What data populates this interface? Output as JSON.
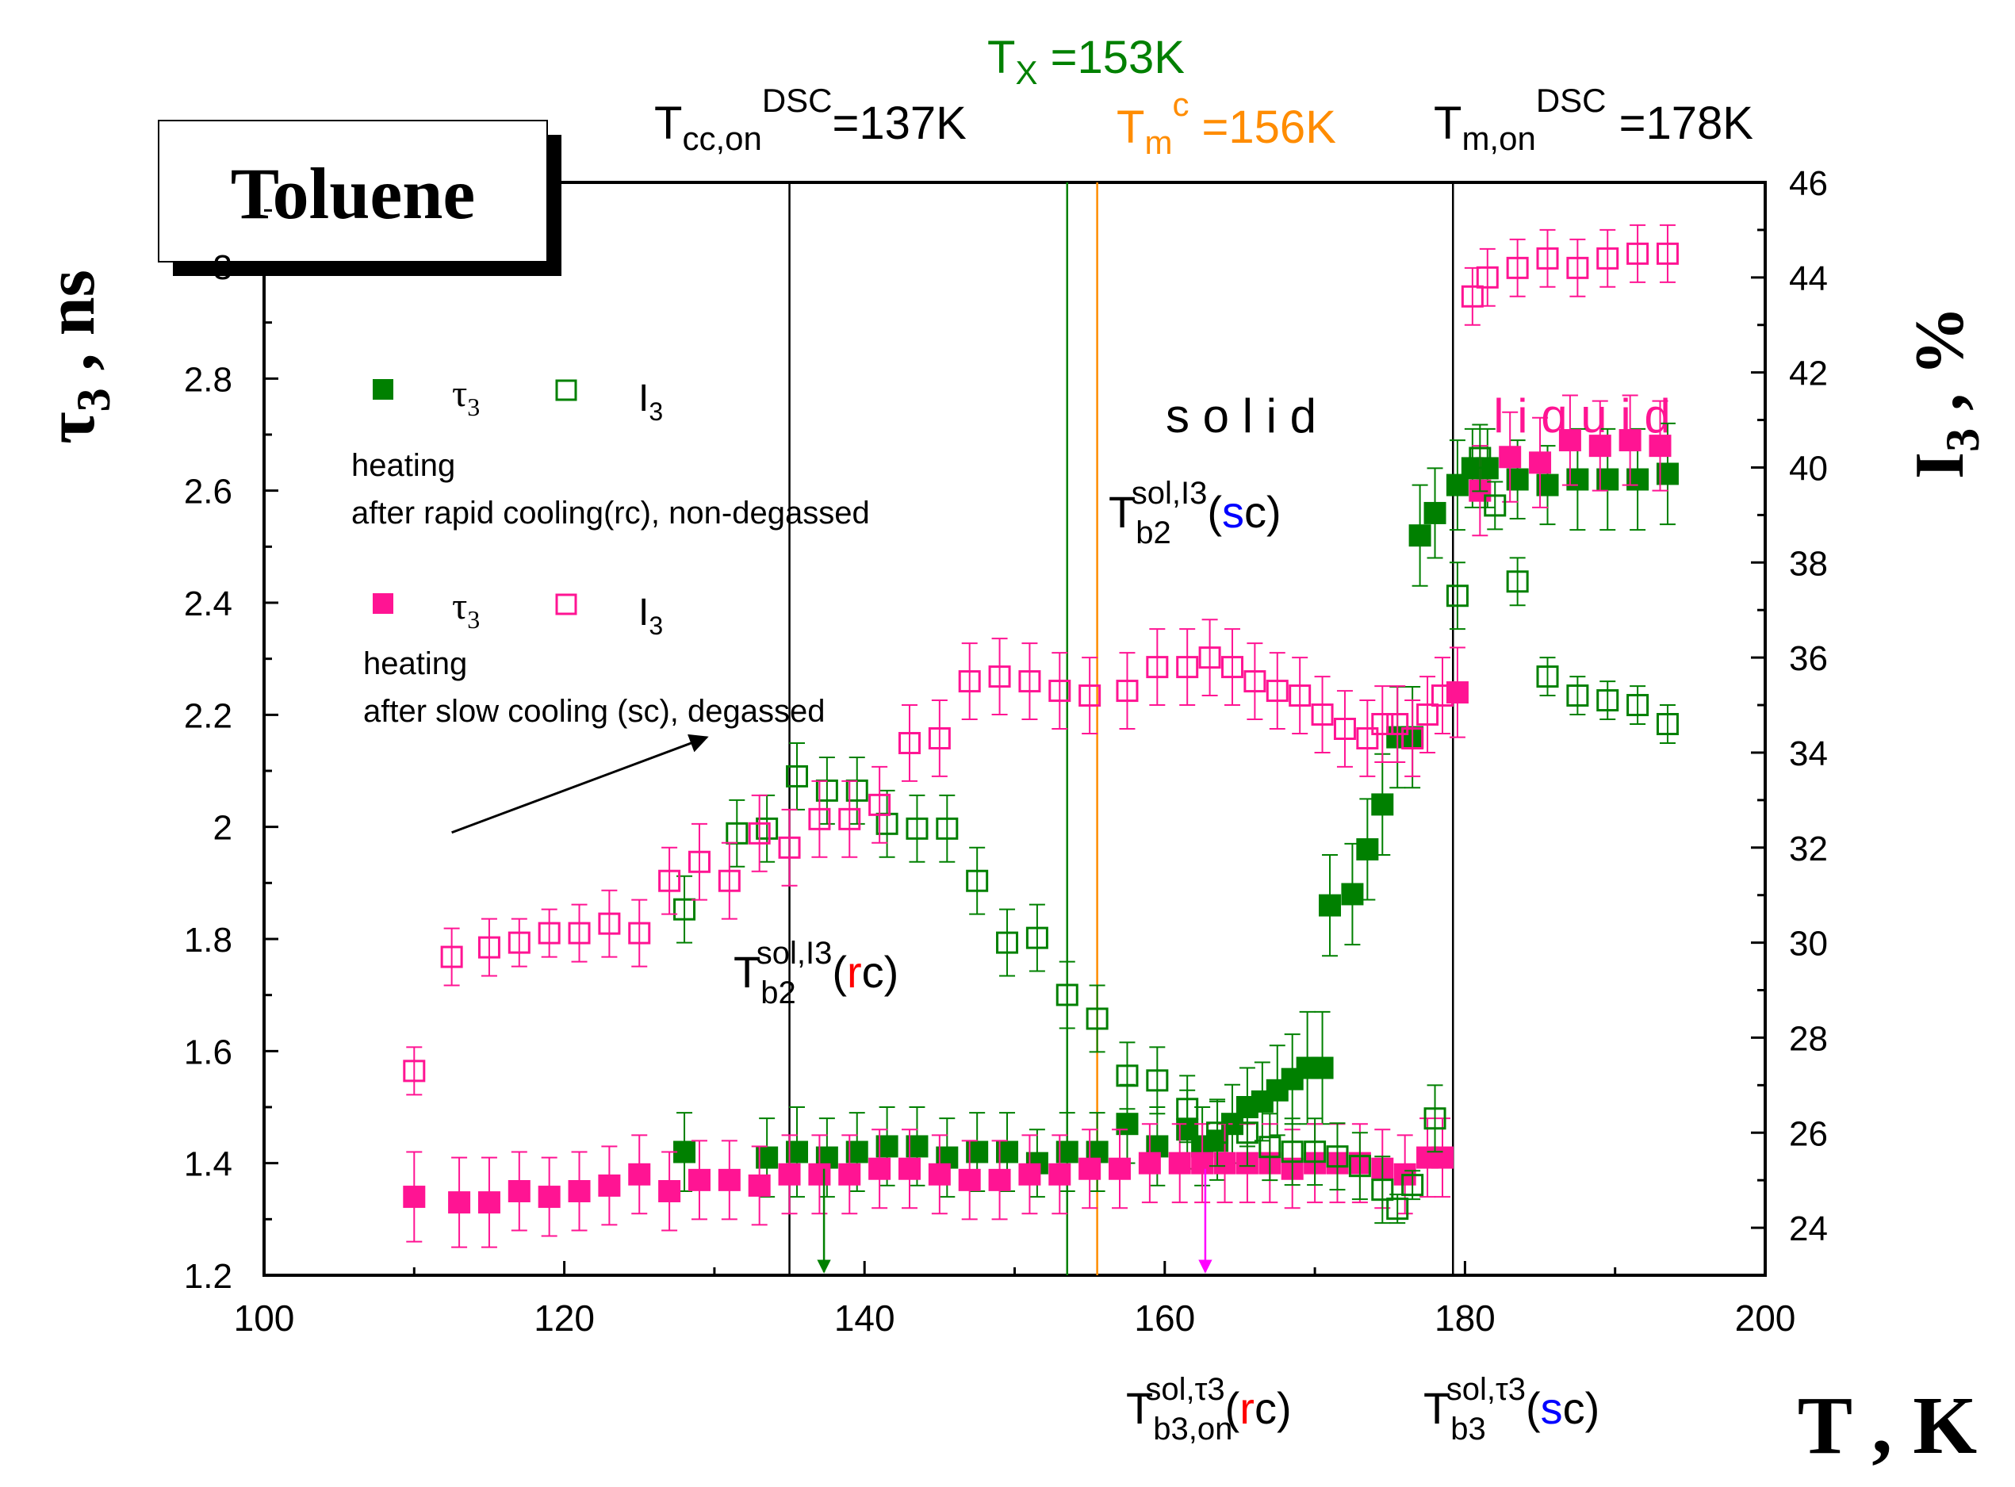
{
  "chart_data": {
    "type": "scatter",
    "title": "Toluene",
    "xlabel": "T , K",
    "ylabel_left": {
      "main": "τ",
      "sub": "3",
      "rest": " , ns"
    },
    "ylabel_right": {
      "main": "I",
      "sub": "3",
      "rest": " , %"
    },
    "xlim": [
      100,
      200
    ],
    "ylim_left": [
      1.2,
      3.15
    ],
    "ylim_right": [
      23,
      46
    ],
    "xticks": [
      100,
      120,
      140,
      160,
      180,
      200
    ],
    "yticks_left": [
      1.2,
      1.4,
      1.6,
      1.8,
      2,
      2.2,
      2.4,
      2.6,
      2.8,
      3
    ],
    "yticks_right": [
      24,
      26,
      28,
      30,
      32,
      34,
      36,
      38,
      40,
      42,
      44,
      46
    ],
    "colors": {
      "green": "#008000",
      "magenta": "#ff1493",
      "orange": "#ff8c00",
      "red": "#ff0000",
      "blue": "#0000ff",
      "arrow_magenta": "#ff00ff",
      "black": "#000000"
    },
    "legend": [
      {
        "tau_label": "τ",
        "tau_sub": "3",
        "I_label": "I",
        "I_sub": "3",
        "color": "#008000",
        "line1": "heating",
        "line2": "after rapid cooling(rc), non-degassed"
      },
      {
        "tau_label": "τ",
        "tau_sub": "3",
        "I_label": "I",
        "I_sub": "3",
        "color": "#ff1493",
        "line1": "heating",
        "line2": "after slow cooling (sc), degassed"
      }
    ],
    "vlines": [
      {
        "x": 135,
        "color": "#000000"
      },
      {
        "x": 153.5,
        "color": "#008000"
      },
      {
        "x": 155.5,
        "color": "#ff8c00"
      },
      {
        "x": 179.2,
        "color": "#000000"
      }
    ],
    "top_annotations": [
      {
        "main": "T",
        "sub": "cc,on",
        "sup": "DSC",
        "rest": "=137K",
        "color": "#000000"
      },
      {
        "main": "T",
        "sub": "X",
        "sup": "",
        "rest": " =153K",
        "color": "#008000"
      },
      {
        "main": "T",
        "sub": "m",
        "sup": "c",
        "rest": " =156K",
        "color": "#ff8c00"
      },
      {
        "main": "T",
        "sub": "m,on",
        "sup": "DSC",
        "rest": " =178K",
        "color": "#000000"
      }
    ],
    "region_labels": {
      "solid": "s o l i d",
      "liquid": "l i q u i d"
    },
    "inner_annotations": [
      {
        "id": "b2-sc",
        "main": "T",
        "sub": "b2",
        "sup": "sol,I3",
        "open": "(",
        "colored": "s",
        "rest": "c)",
        "colored_color": "#0000ff"
      },
      {
        "id": "b2-rc",
        "main": "T",
        "sub": "b2",
        "sup": "sol,I3",
        "open": "(",
        "colored": "r",
        "rest": "c)",
        "colored_color": "#ff0000"
      },
      {
        "id": "b3on-rc",
        "main": "T",
        "sub": "b3,on",
        "sup": "sol,τ3",
        "open": "(",
        "colored": "r",
        "rest": "c)",
        "colored_color": "#ff0000"
      },
      {
        "id": "b3-sc",
        "main": "T",
        "sub": "b3",
        "sup": "sol,τ3",
        "open": "(",
        "colored": "s",
        "rest": "c)",
        "colored_color": "#0000ff"
      }
    ],
    "arrows": [
      {
        "from": [
          112.5,
          1.99
        ],
        "to": [
          129.5,
          2.16
        ],
        "color": "#000000"
      },
      {
        "x": 137.3,
        "from_y": 1.39,
        "to_y": 1.2,
        "color": "#008000"
      },
      {
        "x": 162.7,
        "from_y": 1.39,
        "to_y": 1.2,
        "color": "#ff00ff"
      }
    ],
    "series": [
      {
        "name": "τ3 rc (heating after rapid cooling, non-degassed)",
        "axis": "left",
        "marker": "filled-square",
        "color": "#008000",
        "x": [
          128,
          133.5,
          135.5,
          137.5,
          139.5,
          141.5,
          143.5,
          145.5,
          147.5,
          149.5,
          151.5,
          153.5,
          155.5,
          157.5,
          159.5,
          161.5,
          162.5,
          163.5,
          164.5,
          165.5,
          166.5,
          167.5,
          168.5,
          169.5,
          170.5,
          171,
          172.5,
          173.5,
          174.5,
          175.5,
          176.5,
          177,
          178,
          179.5,
          180.5,
          181.5,
          183.5,
          185.5,
          187.5,
          189.5,
          191.5,
          193.5
        ],
        "y": [
          1.42,
          1.41,
          1.42,
          1.41,
          1.42,
          1.43,
          1.43,
          1.41,
          1.42,
          1.42,
          1.4,
          1.42,
          1.42,
          1.47,
          1.43,
          1.46,
          1.43,
          1.44,
          1.47,
          1.5,
          1.51,
          1.53,
          1.55,
          1.57,
          1.57,
          1.86,
          1.88,
          1.96,
          2.04,
          2.16,
          2.16,
          2.52,
          2.56,
          2.61,
          2.64,
          2.64,
          2.62,
          2.61,
          2.62,
          2.62,
          2.62,
          2.63
        ],
        "err": [
          0.07,
          0.07,
          0.08,
          0.07,
          0.07,
          0.07,
          0.07,
          0.07,
          0.07,
          0.07,
          0.06,
          0.07,
          0.07,
          0.07,
          0.07,
          0.07,
          0.07,
          0.07,
          0.07,
          0.07,
          0.07,
          0.08,
          0.08,
          0.1,
          0.1,
          0.09,
          0.09,
          0.09,
          0.09,
          0.09,
          0.09,
          0.09,
          0.08,
          0.08,
          0.07,
          0.07,
          0.07,
          0.07,
          0.09,
          0.09,
          0.09,
          0.09
        ]
      },
      {
        "name": "τ3 sc (heating after slow cooling, degassed)",
        "axis": "left",
        "marker": "filled-square",
        "color": "#ff1493",
        "x": [
          110,
          113,
          115,
          117,
          119,
          121,
          123,
          125,
          127,
          129,
          131,
          133,
          135,
          137,
          139,
          141,
          143,
          145,
          147,
          149,
          151,
          153,
          155,
          157,
          159,
          161,
          162.5,
          164,
          165.5,
          167,
          168.5,
          170,
          171.5,
          173,
          174.5,
          176,
          177.5,
          178.5,
          179.5,
          181,
          183,
          185,
          187,
          189,
          191,
          193
        ],
        "y": [
          1.34,
          1.33,
          1.33,
          1.35,
          1.34,
          1.35,
          1.36,
          1.38,
          1.35,
          1.37,
          1.37,
          1.36,
          1.38,
          1.38,
          1.38,
          1.39,
          1.39,
          1.38,
          1.37,
          1.37,
          1.38,
          1.38,
          1.39,
          1.39,
          1.4,
          1.4,
          1.4,
          1.4,
          1.4,
          1.4,
          1.39,
          1.4,
          1.4,
          1.4,
          1.39,
          1.38,
          1.41,
          1.41,
          2.24,
          2.6,
          2.66,
          2.65,
          2.69,
          2.68,
          2.69,
          2.68
        ],
        "err": [
          0.08,
          0.08,
          0.08,
          0.07,
          0.07,
          0.07,
          0.07,
          0.07,
          0.07,
          0.07,
          0.07,
          0.07,
          0.07,
          0.07,
          0.07,
          0.07,
          0.07,
          0.07,
          0.07,
          0.07,
          0.07,
          0.07,
          0.07,
          0.07,
          0.07,
          0.07,
          0.07,
          0.07,
          0.07,
          0.07,
          0.07,
          0.07,
          0.07,
          0.07,
          0.07,
          0.07,
          0.07,
          0.07,
          0.08,
          0.08,
          0.08,
          0.08,
          0.08,
          0.08,
          0.08,
          0.08
        ]
      },
      {
        "name": "I3 rc (heating after rapid cooling, non-degassed)",
        "axis": "right",
        "marker": "open-square",
        "color": "#008000",
        "x": [
          128,
          131.5,
          133.5,
          135.5,
          137.5,
          139.5,
          141.5,
          143.5,
          145.5,
          147.5,
          149.5,
          151.5,
          153.5,
          155.5,
          157.5,
          159.5,
          161.5,
          163.5,
          165.5,
          167,
          168.5,
          170,
          171.5,
          173,
          174.5,
          175.5,
          176.5,
          178,
          179.5,
          181,
          182,
          183.5,
          185.5,
          187.5,
          189.5,
          191.5,
          193.5
        ],
        "y": [
          30.7,
          32.3,
          32.4,
          33.5,
          33.2,
          33.2,
          32.5,
          32.4,
          32.4,
          31.3,
          30.0,
          30.1,
          28.9,
          28.4,
          27.2,
          27.1,
          26.5,
          26.0,
          26.0,
          25.7,
          25.6,
          25.6,
          25.5,
          25.3,
          24.8,
          24.4,
          24.9,
          26.3,
          37.3,
          40.2,
          39.2,
          37.6,
          35.6,
          35.2,
          35.1,
          35.0,
          34.6
        ],
        "err": [
          0.7,
          0.7,
          0.7,
          0.7,
          0.7,
          0.7,
          0.7,
          0.7,
          0.7,
          0.7,
          0.7,
          0.7,
          0.7,
          0.7,
          0.7,
          0.7,
          0.7,
          0.7,
          0.7,
          0.7,
          0.7,
          0.7,
          0.7,
          0.7,
          0.7,
          0.3,
          0.3,
          0.7,
          0.7,
          0.7,
          0.5,
          0.5,
          0.4,
          0.4,
          0.4,
          0.4,
          0.4
        ]
      },
      {
        "name": "I3 sc (heating after slow cooling, degassed)",
        "axis": "right",
        "marker": "open-square",
        "color": "#ff1493",
        "x": [
          110,
          112.5,
          115,
          117,
          119,
          121,
          123,
          125,
          127,
          129,
          131,
          133,
          135,
          137,
          139,
          141,
          143,
          145,
          147,
          149,
          151,
          153,
          155,
          157.5,
          159.5,
          161.5,
          163,
          164.5,
          166,
          167.5,
          169,
          170.5,
          172,
          173.5,
          174.5,
          175.5,
          176.5,
          177.5,
          178.5,
          180.5,
          181.5,
          183.5,
          185.5,
          187.5,
          189.5,
          191.5,
          193.5
        ],
        "y": [
          27.3,
          29.7,
          29.9,
          30.0,
          30.2,
          30.2,
          30.4,
          30.2,
          31.3,
          31.7,
          31.3,
          32.3,
          32.0,
          32.6,
          32.6,
          32.9,
          34.2,
          34.3,
          35.5,
          35.6,
          35.5,
          35.3,
          35.2,
          35.3,
          35.8,
          35.8,
          36.0,
          35.8,
          35.5,
          35.3,
          35.2,
          34.8,
          34.5,
          34.3,
          34.6,
          34.6,
          34.3,
          34.8,
          35.2,
          43.6,
          44.0,
          44.2,
          44.4,
          44.2,
          44.4,
          44.5,
          44.5
        ],
        "err": [
          0.5,
          0.6,
          0.6,
          0.5,
          0.5,
          0.6,
          0.7,
          0.7,
          0.7,
          0.8,
          0.8,
          0.8,
          0.8,
          0.8,
          0.8,
          0.8,
          0.8,
          0.8,
          0.8,
          0.8,
          0.8,
          0.8,
          0.8,
          0.8,
          0.8,
          0.8,
          0.8,
          0.8,
          0.8,
          0.8,
          0.8,
          0.8,
          0.8,
          0.8,
          0.8,
          0.8,
          0.8,
          0.8,
          0.8,
          0.6,
          0.6,
          0.6,
          0.6,
          0.6,
          0.6,
          0.6,
          0.6
        ]
      }
    ]
  }
}
